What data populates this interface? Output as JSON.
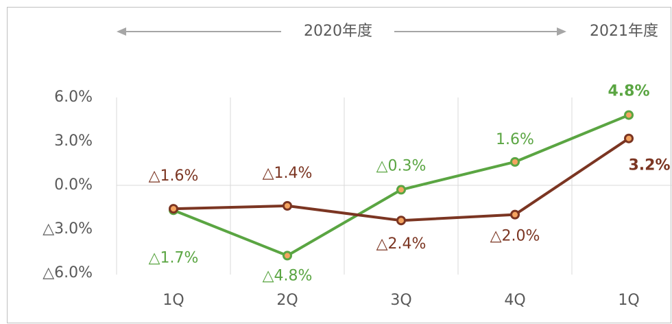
{
  "chart_data": {
    "type": "line",
    "annotations": [
      "2020年度",
      "2021年度"
    ],
    "categories": [
      "1Q",
      "2Q",
      "3Q",
      "4Q",
      "1Q"
    ],
    "series": [
      {
        "color": "#5aa542",
        "values": [
          -1.7,
          -4.8,
          -0.3,
          1.6,
          4.8
        ],
        "value_labels": [
          "△1.7%",
          "△4.8%",
          "△0.3%",
          "1.6%",
          "4.8%"
        ]
      },
      {
        "color": "#7b3522",
        "values": [
          -1.6,
          -1.4,
          -2.4,
          -2.0,
          3.2
        ],
        "value_labels": [
          "△1.6%",
          "△1.4%",
          "△2.4%",
          "△2.0%",
          "3.2%"
        ]
      }
    ],
    "marker_color": "#f4a460",
    "ylim": [
      -6,
      6
    ],
    "yticks": [
      {
        "value": 6,
        "label": "6.0%"
      },
      {
        "value": 3,
        "label": "3.0%"
      },
      {
        "value": 0,
        "label": "0.0%"
      },
      {
        "value": -3,
        "label": "△3.0%"
      },
      {
        "value": -6,
        "label": "△6.0%"
      }
    ]
  }
}
